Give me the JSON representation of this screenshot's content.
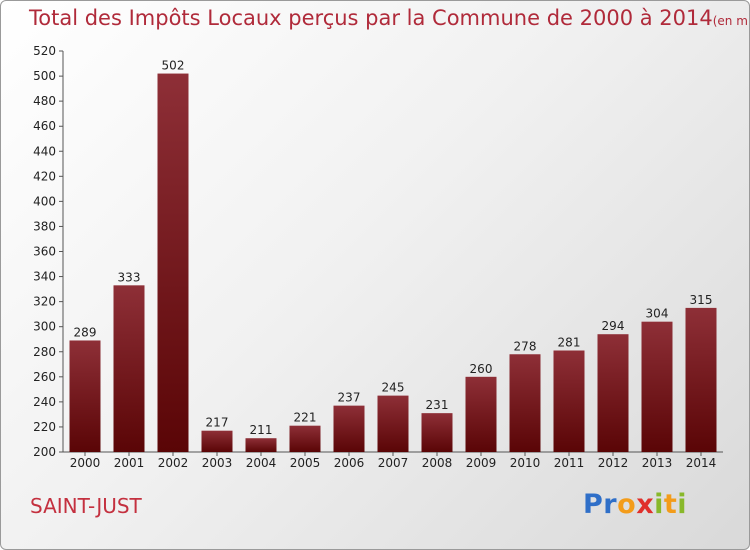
{
  "commune": "SAINT-JUST",
  "brand": {
    "letters": [
      {
        "ch": "P",
        "color": "#2f6fc8"
      },
      {
        "ch": "r",
        "color": "#2f6fc8"
      },
      {
        "ch": "o",
        "color": "#f39c1a"
      },
      {
        "ch": "x",
        "color": "#e0302b"
      },
      {
        "ch": "i",
        "color": "#88b82a"
      },
      {
        "ch": "t",
        "color": "#f39c1a"
      },
      {
        "ch": "i",
        "color": "#88b82a"
      }
    ]
  },
  "colors": {
    "bar_top": "#8e2f37",
    "bar_bottom": "#5a0506",
    "title": "#b02a3a"
  },
  "chart_data": {
    "type": "bar",
    "title": "Total des Impôts Locaux perçus par la Commune de 2000 à 2014",
    "unit": "(en milliers d'€)",
    "categories": [
      "2000",
      "2001",
      "2002",
      "2003",
      "2004",
      "2005",
      "2006",
      "2007",
      "2008",
      "2009",
      "2010",
      "2011",
      "2012",
      "2013",
      "2014"
    ],
    "values": [
      289,
      333,
      502,
      217,
      211,
      221,
      237,
      245,
      231,
      260,
      278,
      281,
      294,
      304,
      315
    ],
    "ylim": [
      200,
      520
    ],
    "yticks": [
      200,
      220,
      240,
      260,
      280,
      300,
      320,
      340,
      360,
      380,
      400,
      420,
      440,
      460,
      480,
      500,
      520
    ],
    "grid": false,
    "legend": "none"
  }
}
